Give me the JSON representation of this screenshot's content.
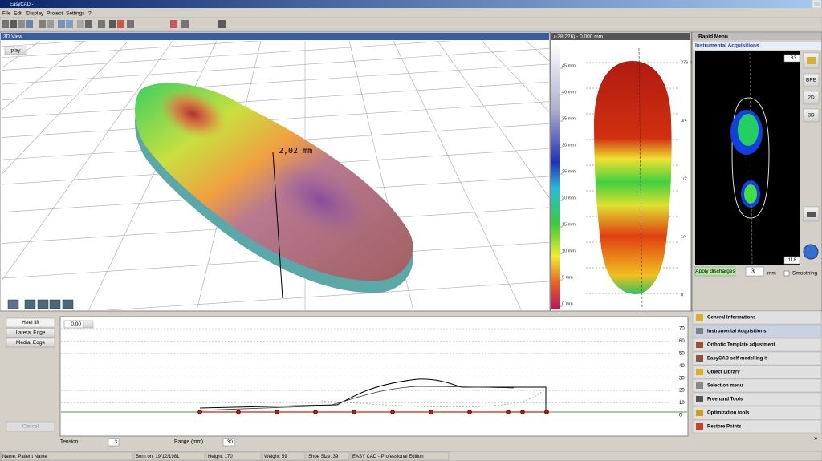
{
  "title_bar": {
    "title": "EasyCAD -"
  },
  "menu": [
    "File",
    "Edit",
    "Display",
    "Project",
    "Settings",
    "?"
  ],
  "view3d": {
    "title": "3D View",
    "play": "play",
    "measurement": "2,02 mm"
  },
  "pressure_map": {
    "header": "(-38,226) - 0,000 mm",
    "scale": [
      "45 mm",
      "40 mm",
      "35 mm",
      "30 mm",
      "25 mm",
      "20 mm",
      "15 mm",
      "10 mm",
      "5 mm",
      "0 mm"
    ],
    "length_marks": [
      "376 mm",
      "3/4",
      "1/2",
      "1/4",
      "0"
    ]
  },
  "rapid_menu": {
    "title": "Rapid Menu",
    "section": "Instrumental Acquisitions",
    "top_value": "83",
    "bottom_value": "118",
    "buttons": [
      "BPE",
      "2D",
      "3D"
    ],
    "apply": "Apply discharges",
    "smoothing_value": "3",
    "unit": "mm",
    "smoothing": "Smoothing"
  },
  "menu_items": [
    "General Informations",
    "Instrumental Acquisitions",
    "Orthotic Template adjustment",
    "EasyCAD self-modelling ®",
    "Object Library",
    "Selection menu",
    "Freehand Tools",
    "Optimization tools",
    "Restore Points"
  ],
  "profile_editor": {
    "buttons": [
      "Heel lift",
      "Lateral Edge",
      "Medial Edge"
    ],
    "cancel": "Cancel",
    "offset": "0,00",
    "y_labels": [
      "70",
      "60",
      "50",
      "40",
      "30",
      "20",
      "10",
      "0"
    ],
    "tension_label": "Tension",
    "tension": "3",
    "range_label": "Range (mm)",
    "range": "30"
  },
  "status_bar": [
    "Name: Patient Name",
    "Born on: 19/12/1981",
    "Height: 170",
    "Weight: 59",
    "Shoe Size: 39",
    "EASY CAD - Professional Edition"
  ]
}
